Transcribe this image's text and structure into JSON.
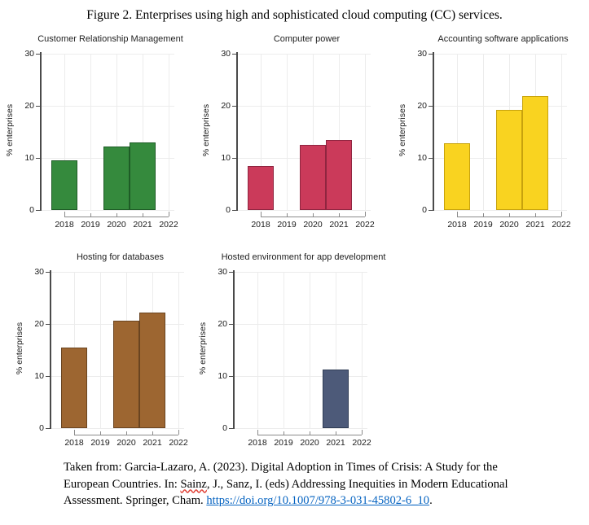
{
  "figure": {
    "title": "Figure 2. Enterprises using high and sophisticated cloud computing (CC) services."
  },
  "chart_data": [
    {
      "type": "bar",
      "title": "Customer Relationship Management",
      "ylabel": "% enterprises",
      "categories": [
        "2018",
        "2019",
        "2020",
        "2021",
        "2022"
      ],
      "values": [
        9.6,
        null,
        12.2,
        13.0,
        null
      ],
      "ylim": [
        0,
        30
      ],
      "yticks": [
        0,
        10,
        20,
        30
      ],
      "grid": true,
      "legend": "none",
      "bar_color": "#358a3d",
      "bar_border_color": "#1e5c26"
    },
    {
      "type": "bar",
      "title": "Computer power",
      "ylabel": "% enterprises",
      "categories": [
        "2018",
        "2019",
        "2020",
        "2021",
        "2022"
      ],
      "values": [
        8.5,
        null,
        12.5,
        13.4,
        null
      ],
      "ylim": [
        0,
        30
      ],
      "yticks": [
        0,
        10,
        20,
        30
      ],
      "grid": true,
      "legend": "none",
      "bar_color": "#cb3a5a",
      "bar_border_color": "#8f2540"
    },
    {
      "type": "bar",
      "title": "Accounting software applications",
      "ylabel": "% enterprises",
      "categories": [
        "2018",
        "2019",
        "2020",
        "2021",
        "2022"
      ],
      "values": [
        12.8,
        null,
        19.2,
        21.8,
        null
      ],
      "ylim": [
        0,
        30
      ],
      "yticks": [
        0,
        10,
        20,
        30
      ],
      "grid": true,
      "legend": "none",
      "bar_color": "#f9d320",
      "bar_border_color": "#c7a20d"
    },
    {
      "type": "bar",
      "title": "Hosting for databases",
      "ylabel": "% enterprises",
      "categories": [
        "2018",
        "2019",
        "2020",
        "2021",
        "2022"
      ],
      "values": [
        15.4,
        null,
        20.6,
        22.2,
        null
      ],
      "ylim": [
        0,
        30
      ],
      "yticks": [
        0,
        10,
        20,
        30
      ],
      "grid": true,
      "legend": "none",
      "bar_color": "#9d6631",
      "bar_border_color": "#6a4420"
    },
    {
      "type": "bar",
      "title": "Hosted environment for app development",
      "ylabel": "% enterprises",
      "categories": [
        "2018",
        "2019",
        "2020",
        "2021",
        "2022"
      ],
      "values": [
        null,
        null,
        null,
        11.2,
        null
      ],
      "ylim": [
        0,
        30
      ],
      "yticks": [
        0,
        10,
        20,
        30
      ],
      "grid": true,
      "legend": "none",
      "bar_color": "#4d5a79",
      "bar_border_color": "#303c55"
    }
  ],
  "citation": {
    "prefix": "Taken from: Garcia-Lazaro, A. (2023). Digital Adoption in Times of Crisis: A Study for the European Countries. In: ",
    "misspelled_word": "Sainz",
    "middle": ", J., Sanz, I. (eds) Addressing Inequities in Modern Educational Assessment. Springer, Cham. ",
    "link_text": "https://doi.org/10.1007/978-3-031-45802-6_10",
    "suffix": ".",
    "link_color": "#0563c1"
  },
  "colors": {
    "gridline": "#ececec",
    "y_axis": "#4a4a4a",
    "x_axis": "#8a8a8a",
    "label_text": "#1a1a1a"
  }
}
